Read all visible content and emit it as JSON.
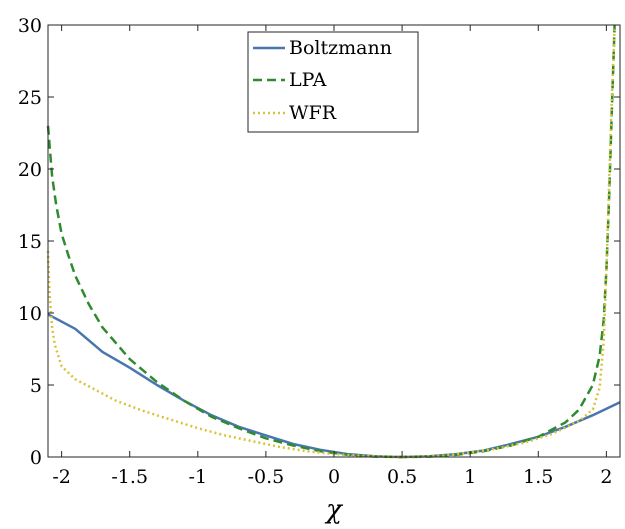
{
  "chart_data": {
    "type": "line",
    "title": "",
    "xlabel": "χ",
    "ylabel": "",
    "xlim": [
      -2.1,
      2.1
    ],
    "ylim": [
      0,
      30
    ],
    "xticks": [
      -2,
      -1.5,
      -1,
      -0.5,
      0,
      0.5,
      1,
      1.5,
      2
    ],
    "xtick_labels": [
      "-2",
      "-1.5",
      "-1",
      "-0.5",
      "0",
      "0.5",
      "1",
      "1.5",
      "2"
    ],
    "yticks": [
      0,
      5,
      10,
      15,
      20,
      25,
      30
    ],
    "ytick_labels": [
      "0",
      "5",
      "10",
      "15",
      "20",
      "25",
      "30"
    ],
    "grid": false,
    "legend_position": "top-center",
    "series": [
      {
        "name": "Boltzmann",
        "color": "#4A76B0",
        "style": "solid",
        "x": [
          -2.1,
          -1.9,
          -1.7,
          -1.5,
          -1.3,
          -1.1,
          -0.9,
          -0.7,
          -0.5,
          -0.3,
          -0.1,
          0.1,
          0.3,
          0.5,
          0.7,
          0.9,
          1.1,
          1.3,
          1.5,
          1.7,
          1.9,
          2.1
        ],
        "y": [
          9.9,
          8.9,
          7.3,
          6.2,
          5.0,
          3.9,
          2.9,
          2.1,
          1.5,
          0.9,
          0.5,
          0.2,
          0.05,
          0.0,
          0.05,
          0.2,
          0.45,
          0.9,
          1.4,
          2.1,
          2.9,
          3.8
        ]
      },
      {
        "name": "LPA",
        "color": "#2E8B2E",
        "style": "dashed",
        "x": [
          -2.1,
          -2.07,
          -2.04,
          -2.0,
          -1.95,
          -1.9,
          -1.8,
          -1.7,
          -1.5,
          -1.3,
          -1.1,
          -0.9,
          -0.7,
          -0.5,
          -0.3,
          -0.1,
          0.1,
          0.3,
          0.5,
          0.7,
          0.9,
          1.1,
          1.3,
          1.5,
          1.7,
          1.8,
          1.9,
          1.95,
          1.98,
          2.0,
          2.02,
          2.04,
          2.06
        ],
        "y": [
          23.0,
          19.5,
          17.5,
          15.5,
          14.0,
          12.6,
          10.6,
          9.0,
          6.8,
          5.2,
          3.9,
          2.8,
          2.0,
          1.3,
          0.8,
          0.4,
          0.15,
          0.03,
          0.0,
          0.03,
          0.15,
          0.4,
          0.8,
          1.4,
          2.4,
          3.3,
          5.0,
          7.0,
          9.5,
          13.0,
          18.0,
          24.0,
          30.0
        ]
      },
      {
        "name": "WFR",
        "color": "#D9C23A",
        "style": "dotted",
        "x": [
          -2.1,
          -2.09,
          -2.07,
          -2.05,
          -2.0,
          -1.9,
          -1.8,
          -1.6,
          -1.4,
          -1.2,
          -1.0,
          -0.8,
          -0.6,
          -0.4,
          -0.2,
          0.0,
          0.2,
          0.4,
          0.6,
          0.8,
          1.0,
          1.2,
          1.4,
          1.6,
          1.8,
          1.9,
          1.95,
          1.98,
          2.0,
          2.02,
          2.04,
          2.06
        ],
        "y": [
          14.3,
          11.5,
          9.0,
          7.8,
          6.3,
          5.4,
          4.9,
          3.9,
          3.2,
          2.6,
          2.0,
          1.5,
          1.1,
          0.7,
          0.4,
          0.2,
          0.08,
          0.01,
          0.01,
          0.1,
          0.3,
          0.6,
          1.0,
          1.6,
          2.5,
          3.3,
          4.8,
          8.0,
          13.0,
          19.0,
          25.0,
          29.7
        ]
      }
    ]
  }
}
